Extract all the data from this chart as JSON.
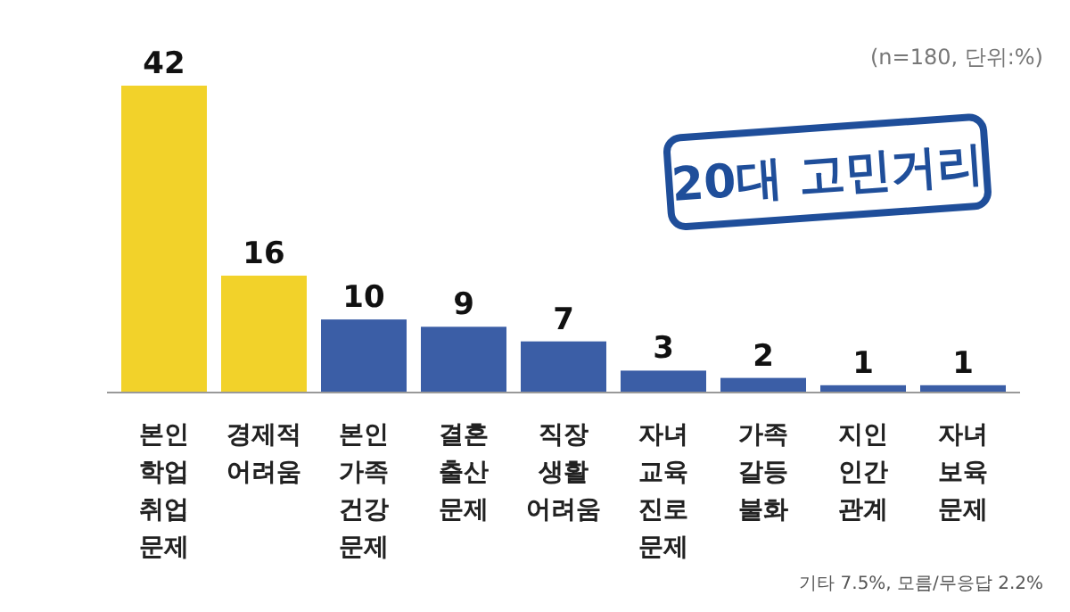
{
  "chart_data": {
    "type": "bar",
    "title": "20대 고민거리",
    "categories": [
      "본인 학업 취업 문제",
      "경제적 어려움",
      "본인 가족 건강 문제",
      "결혼 출산 문제",
      "직장 생활 어려움",
      "자녀 교육 진로 문제",
      "가족 갈등 불화",
      "지인 인간 관계",
      "자녀 보육 문제"
    ],
    "values": [
      42,
      16,
      10,
      9,
      7,
      3,
      2,
      1,
      1
    ],
    "colors": [
      "#f2d22a",
      "#f2d22a",
      "#3b5ea6",
      "#3b5ea6",
      "#3b5ea6",
      "#3b5ea6",
      "#3b5ea6",
      "#3b5ea6",
      "#3b5ea6"
    ],
    "data_labels": true,
    "annotations": [
      "(n=180, 단위:%)",
      "기타 7.5%, 모름/무응답 2.2%"
    ]
  }
}
